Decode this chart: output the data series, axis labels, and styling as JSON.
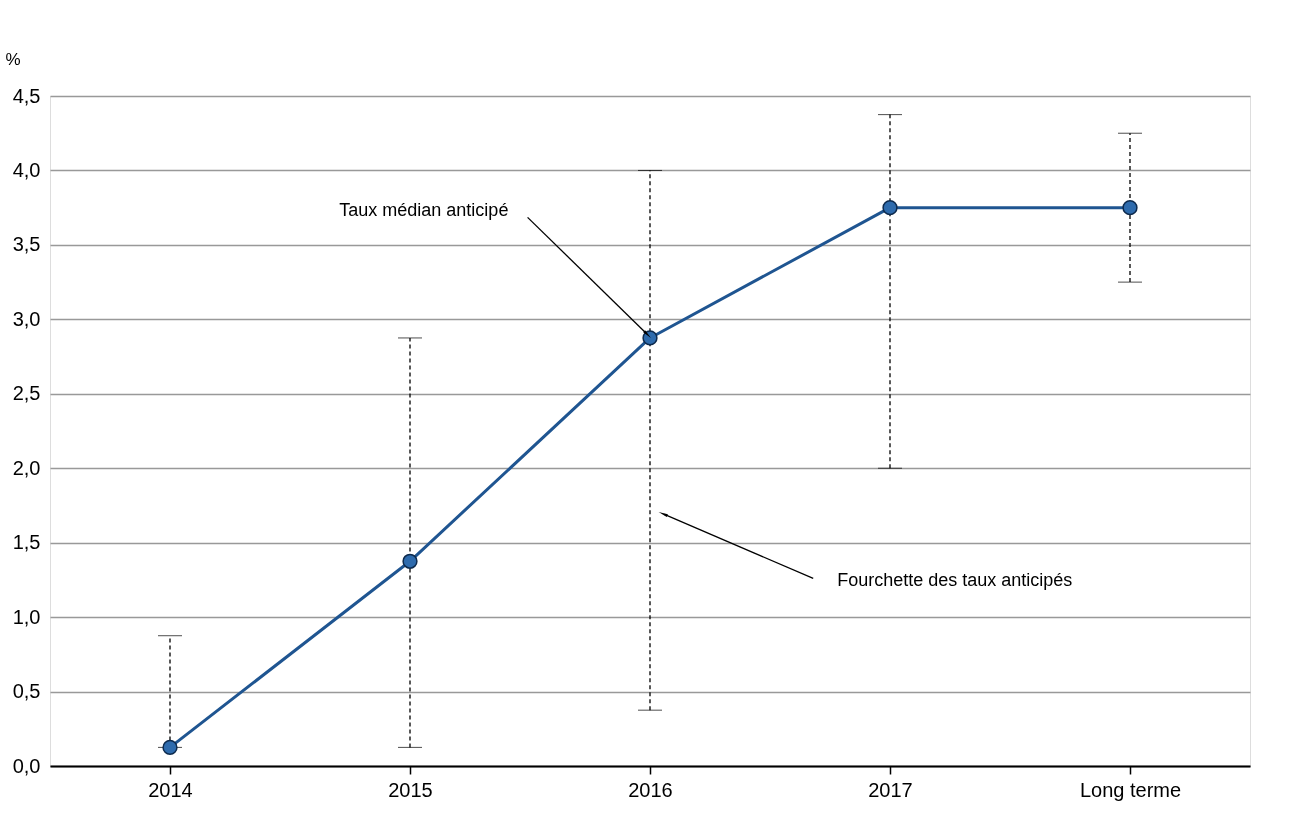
{
  "chart_data": {
    "type": "line",
    "categories": [
      "2014",
      "2015",
      "2016",
      "2017",
      "Long terme"
    ],
    "series": [
      {
        "color": "#1f5591",
        "values": [
          0.125,
          1.375,
          2.875,
          3.75,
          3.75
        ],
        "errors": [
          [
            0.125,
            0.875
          ],
          [
            0.125,
            2.875
          ],
          [
            0.375,
            4.0
          ],
          [
            2.0,
            4.375
          ],
          [
            3.25,
            4.25
          ]
        ]
      }
    ],
    "ylabel": "%",
    "ylim": [
      0,
      4.5
    ],
    "yticks": [
      {
        "value": 0,
        "label": "0,0"
      },
      {
        "value": 0.5,
        "label": "0,5"
      },
      {
        "value": 1,
        "label": "1,0"
      },
      {
        "value": 1.5,
        "label": "1,5"
      },
      {
        "value": 2,
        "label": "2,0"
      },
      {
        "value": 2.5,
        "label": "2,5"
      },
      {
        "value": 3,
        "label": "3,0"
      },
      {
        "value": 3.5,
        "label": "3,5"
      },
      {
        "value": 4,
        "label": "4,0"
      },
      {
        "value": 4.5,
        "label": "4,5"
      }
    ],
    "annotations": [
      {
        "text": "Taux médian anticipé",
        "x": "2016",
        "y": 2.875
      },
      "Fourchette des taux anticipés"
    ],
    "grid": "y",
    "marker": "circle",
    "line_style": "solid"
  }
}
